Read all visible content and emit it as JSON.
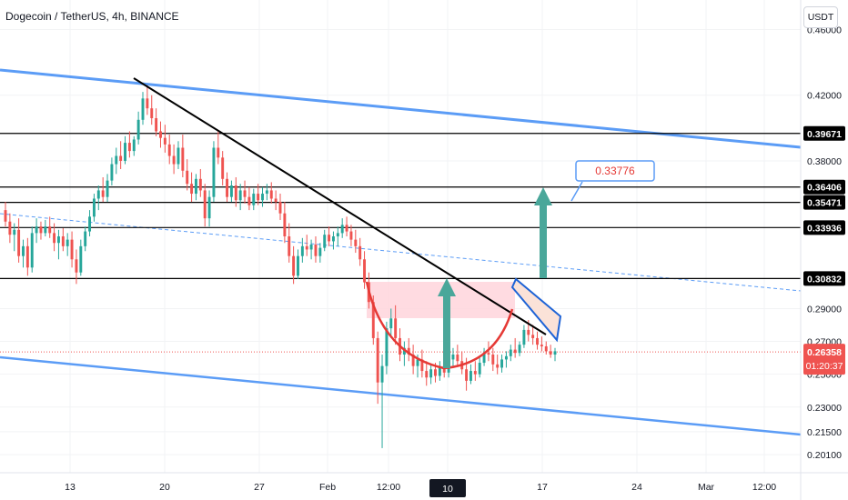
{
  "header": {
    "title": "Dogecoin / TetherUS, 4h, BINANCE",
    "currency_button": "USDT"
  },
  "colors": {
    "up": "#26a69a",
    "down": "#ef5350",
    "channel": "#5b9cf6",
    "mid_line": "#5b9cf6",
    "trendline": "#000000",
    "level": "#000000",
    "cup": "#e53935",
    "cup_fill": "#ffd5dc",
    "arrow": "#4aa79a",
    "flag_fill": "#fbe2d8",
    "flag_border": "#1e63d6",
    "target_label": "#e53935",
    "price_label": "#ef5350"
  },
  "chart_data": {
    "type": "candlestick",
    "title": "Dogecoin / TetherUS, 4h, BINANCE",
    "price_axis": {
      "unit": "USDT",
      "range": [
        0.19,
        0.478
      ],
      "ticks": [
        0.46,
        0.42,
        0.38,
        0.29,
        0.27,
        0.25,
        0.23,
        0.215,
        0.201
      ],
      "tick_labels": [
        "0.46000",
        "0.42000",
        "0.38000",
        "0.29000",
        "0.27000",
        "0.25000",
        "0.23000",
        "0.21500",
        "0.20100"
      ]
    },
    "time_axis": {
      "ticks": [
        "13",
        "20",
        "27",
        "Feb",
        "12:00",
        "10",
        "10",
        "17",
        "24",
        "Mar",
        "12:00"
      ]
    },
    "horizontal_levels": [
      {
        "label": "0.39671",
        "value": 0.39671
      },
      {
        "label": "0.36406",
        "value": 0.36406
      },
      {
        "label": "0.35471",
        "value": 0.35471
      },
      {
        "label": "0.33936",
        "value": 0.33936
      },
      {
        "label": "0.30832",
        "value": 0.30832
      }
    ],
    "current_price": {
      "label": "0.26358",
      "value": 0.26358,
      "countdown": "01:20:37"
    },
    "target_label": "0.33776",
    "candles_ohlc": [
      [
        0.35,
        0.355,
        0.34,
        0.343
      ],
      [
        0.343,
        0.348,
        0.33,
        0.335
      ],
      [
        0.335,
        0.342,
        0.325,
        0.338
      ],
      [
        0.338,
        0.345,
        0.318,
        0.322
      ],
      [
        0.322,
        0.332,
        0.315,
        0.328
      ],
      [
        0.328,
        0.333,
        0.31,
        0.315
      ],
      [
        0.315,
        0.34,
        0.312,
        0.336
      ],
      [
        0.336,
        0.345,
        0.33,
        0.34
      ],
      [
        0.34,
        0.343,
        0.332,
        0.336
      ],
      [
        0.336,
        0.344,
        0.334,
        0.34
      ],
      [
        0.34,
        0.346,
        0.333,
        0.336
      ],
      [
        0.336,
        0.342,
        0.325,
        0.33
      ],
      [
        0.33,
        0.338,
        0.32,
        0.334
      ],
      [
        0.334,
        0.339,
        0.325,
        0.328
      ],
      [
        0.328,
        0.336,
        0.322,
        0.332
      ],
      [
        0.332,
        0.337,
        0.315,
        0.32
      ],
      [
        0.32,
        0.326,
        0.305,
        0.312
      ],
      [
        0.312,
        0.332,
        0.31,
        0.328
      ],
      [
        0.328,
        0.34,
        0.325,
        0.337
      ],
      [
        0.337,
        0.35,
        0.334,
        0.346
      ],
      [
        0.346,
        0.36,
        0.343,
        0.357
      ],
      [
        0.357,
        0.365,
        0.35,
        0.362
      ],
      [
        0.362,
        0.37,
        0.355,
        0.358
      ],
      [
        0.358,
        0.372,
        0.355,
        0.368
      ],
      [
        0.368,
        0.382,
        0.365,
        0.378
      ],
      [
        0.378,
        0.388,
        0.372,
        0.383
      ],
      [
        0.383,
        0.392,
        0.375,
        0.38
      ],
      [
        0.38,
        0.395,
        0.378,
        0.391
      ],
      [
        0.391,
        0.398,
        0.382,
        0.386
      ],
      [
        0.386,
        0.395,
        0.383,
        0.393
      ],
      [
        0.393,
        0.41,
        0.39,
        0.405
      ],
      [
        0.405,
        0.422,
        0.402,
        0.418
      ],
      [
        0.418,
        0.426,
        0.408,
        0.412
      ],
      [
        0.412,
        0.42,
        0.402,
        0.406
      ],
      [
        0.406,
        0.412,
        0.395,
        0.398
      ],
      [
        0.398,
        0.404,
        0.388,
        0.394
      ],
      [
        0.394,
        0.402,
        0.385,
        0.39
      ],
      [
        0.39,
        0.396,
        0.378,
        0.383
      ],
      [
        0.383,
        0.39,
        0.372,
        0.378
      ],
      [
        0.378,
        0.392,
        0.375,
        0.388
      ],
      [
        0.388,
        0.396,
        0.37,
        0.374
      ],
      [
        0.374,
        0.381,
        0.362,
        0.366
      ],
      [
        0.366,
        0.373,
        0.355,
        0.36
      ],
      [
        0.36,
        0.372,
        0.356,
        0.369
      ],
      [
        0.369,
        0.375,
        0.358,
        0.362
      ],
      [
        0.362,
        0.366,
        0.34,
        0.345
      ],
      [
        0.345,
        0.362,
        0.34,
        0.358
      ],
      [
        0.358,
        0.392,
        0.355,
        0.388
      ],
      [
        0.388,
        0.398,
        0.378,
        0.382
      ],
      [
        0.382,
        0.386,
        0.365,
        0.369
      ],
      [
        0.369,
        0.373,
        0.355,
        0.358
      ],
      [
        0.358,
        0.368,
        0.355,
        0.365
      ],
      [
        0.365,
        0.37,
        0.352,
        0.356
      ],
      [
        0.356,
        0.366,
        0.35,
        0.362
      ],
      [
        0.362,
        0.368,
        0.354,
        0.358
      ],
      [
        0.358,
        0.364,
        0.35,
        0.353
      ],
      [
        0.353,
        0.363,
        0.35,
        0.36
      ],
      [
        0.36,
        0.366,
        0.353,
        0.356
      ],
      [
        0.356,
        0.364,
        0.352,
        0.36
      ],
      [
        0.36,
        0.366,
        0.356,
        0.362
      ],
      [
        0.362,
        0.367,
        0.354,
        0.357
      ],
      [
        0.357,
        0.362,
        0.35,
        0.355
      ],
      [
        0.355,
        0.36,
        0.344,
        0.348
      ],
      [
        0.348,
        0.355,
        0.33,
        0.334
      ],
      [
        0.334,
        0.342,
        0.318,
        0.322
      ],
      [
        0.322,
        0.328,
        0.305,
        0.31
      ],
      [
        0.31,
        0.326,
        0.308,
        0.322
      ],
      [
        0.322,
        0.333,
        0.318,
        0.328
      ],
      [
        0.328,
        0.335,
        0.322,
        0.326
      ],
      [
        0.326,
        0.332,
        0.32,
        0.329
      ],
      [
        0.329,
        0.334,
        0.318,
        0.322
      ],
      [
        0.322,
        0.33,
        0.318,
        0.327
      ],
      [
        0.327,
        0.338,
        0.325,
        0.335
      ],
      [
        0.335,
        0.34,
        0.328,
        0.331
      ],
      [
        0.331,
        0.337,
        0.326,
        0.334
      ],
      [
        0.334,
        0.34,
        0.328,
        0.336
      ],
      [
        0.336,
        0.345,
        0.333,
        0.341
      ],
      [
        0.341,
        0.346,
        0.334,
        0.337
      ],
      [
        0.337,
        0.341,
        0.328,
        0.332
      ],
      [
        0.332,
        0.338,
        0.324,
        0.328
      ],
      [
        0.328,
        0.333,
        0.316,
        0.32
      ],
      [
        0.32,
        0.325,
        0.302,
        0.306
      ],
      [
        0.306,
        0.312,
        0.29,
        0.294
      ],
      [
        0.294,
        0.298,
        0.268,
        0.272
      ],
      [
        0.272,
        0.276,
        0.232,
        0.245
      ],
      [
        0.245,
        0.262,
        0.205,
        0.255
      ],
      [
        0.255,
        0.282,
        0.25,
        0.278
      ],
      [
        0.278,
        0.29,
        0.272,
        0.284
      ],
      [
        0.284,
        0.292,
        0.268,
        0.272
      ],
      [
        0.272,
        0.278,
        0.258,
        0.262
      ],
      [
        0.262,
        0.27,
        0.255,
        0.266
      ],
      [
        0.266,
        0.272,
        0.258,
        0.262
      ],
      [
        0.262,
        0.268,
        0.25,
        0.255
      ],
      [
        0.255,
        0.262,
        0.248,
        0.259
      ],
      [
        0.259,
        0.265,
        0.248,
        0.252
      ],
      [
        0.252,
        0.258,
        0.243,
        0.248
      ],
      [
        0.248,
        0.256,
        0.244,
        0.253
      ],
      [
        0.253,
        0.257,
        0.245,
        0.249
      ],
      [
        0.249,
        0.258,
        0.246,
        0.255
      ],
      [
        0.255,
        0.26,
        0.248,
        0.251
      ],
      [
        0.251,
        0.262,
        0.248,
        0.259
      ],
      [
        0.259,
        0.266,
        0.254,
        0.262
      ],
      [
        0.262,
        0.268,
        0.255,
        0.258
      ],
      [
        0.258,
        0.264,
        0.25,
        0.253
      ],
      [
        0.253,
        0.26,
        0.24,
        0.246
      ],
      [
        0.246,
        0.256,
        0.244,
        0.252
      ],
      [
        0.252,
        0.258,
        0.246,
        0.25
      ],
      [
        0.25,
        0.26,
        0.248,
        0.257
      ],
      [
        0.257,
        0.266,
        0.255,
        0.263
      ],
      [
        0.263,
        0.27,
        0.258,
        0.262
      ],
      [
        0.262,
        0.266,
        0.252,
        0.256
      ],
      [
        0.256,
        0.262,
        0.25,
        0.254
      ],
      [
        0.254,
        0.262,
        0.251,
        0.259
      ],
      [
        0.259,
        0.264,
        0.254,
        0.261
      ],
      [
        0.261,
        0.268,
        0.258,
        0.265
      ],
      [
        0.265,
        0.272,
        0.26,
        0.263
      ],
      [
        0.263,
        0.27,
        0.261,
        0.268
      ],
      [
        0.268,
        0.28,
        0.266,
        0.277
      ],
      [
        0.277,
        0.283,
        0.27,
        0.274
      ],
      [
        0.274,
        0.28,
        0.268,
        0.272
      ],
      [
        0.272,
        0.276,
        0.265,
        0.268
      ],
      [
        0.268,
        0.273,
        0.264,
        0.267
      ],
      [
        0.267,
        0.27,
        0.262,
        0.264
      ],
      [
        0.264,
        0.268,
        0.26,
        0.262
      ],
      [
        0.262,
        0.266,
        0.258,
        0.264
      ]
    ]
  }
}
